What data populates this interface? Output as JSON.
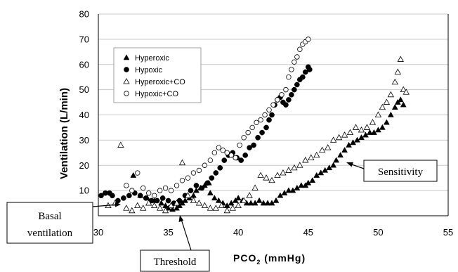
{
  "chart_data": {
    "type": "scatter",
    "title": "",
    "xlabel": "PCO",
    "xlabel_sub": "2",
    "xlabel_unit": " (mmHg)",
    "ylabel": "Ventilation (L/min)",
    "xlim": [
      30,
      55
    ],
    "ylim": [
      0,
      80
    ],
    "xticks": [
      "30",
      "35",
      "40",
      "45",
      "50",
      "55"
    ],
    "yticks": [
      "0",
      "10",
      "20",
      "30",
      "40",
      "50",
      "60",
      "70",
      "80"
    ],
    "grid": "horizontal",
    "legend_position": "upper-left",
    "series": [
      {
        "name": "Hyperoxic",
        "marker": "filled-triangle",
        "points": [
          [
            32.5,
            16
          ],
          [
            33,
            8
          ],
          [
            33.5,
            7
          ],
          [
            34,
            6
          ],
          [
            34.5,
            5
          ],
          [
            34.8,
            4
          ],
          [
            35,
            3
          ],
          [
            35.3,
            2.5
          ],
          [
            35.6,
            3
          ],
          [
            35.8,
            4
          ],
          [
            36,
            5
          ],
          [
            36.2,
            6
          ],
          [
            36.5,
            7
          ],
          [
            36.8,
            8
          ],
          [
            37,
            10
          ],
          [
            37.3,
            11
          ],
          [
            37.6,
            12
          ],
          [
            37.9,
            13
          ],
          [
            38,
            9
          ],
          [
            38.3,
            7
          ],
          [
            38.6,
            6
          ],
          [
            38.9,
            5
          ],
          [
            39.2,
            4
          ],
          [
            39.5,
            5
          ],
          [
            39.8,
            6
          ],
          [
            40,
            7
          ],
          [
            40.3,
            6
          ],
          [
            40.6,
            5
          ],
          [
            40.9,
            5
          ],
          [
            41.2,
            5
          ],
          [
            41.5,
            6
          ],
          [
            41.8,
            5
          ],
          [
            42.1,
            5
          ],
          [
            42.4,
            5
          ],
          [
            42.7,
            6
          ],
          [
            43,
            8
          ],
          [
            43.3,
            9
          ],
          [
            43.6,
            10
          ],
          [
            43.9,
            10
          ],
          [
            44.2,
            11
          ],
          [
            44.5,
            12
          ],
          [
            44.8,
            12
          ],
          [
            45,
            13
          ],
          [
            45.3,
            14
          ],
          [
            45.6,
            16
          ],
          [
            45.9,
            17
          ],
          [
            46.2,
            18
          ],
          [
            46.5,
            19
          ],
          [
            46.8,
            20
          ],
          [
            47,
            22
          ],
          [
            47.3,
            24
          ],
          [
            47.6,
            26
          ],
          [
            47.9,
            28
          ],
          [
            48.2,
            29
          ],
          [
            48.5,
            30
          ],
          [
            48.8,
            31
          ],
          [
            49.1,
            32
          ],
          [
            49.4,
            33
          ],
          [
            49.7,
            33
          ],
          [
            50,
            34
          ],
          [
            50.3,
            35
          ],
          [
            50.6,
            37
          ],
          [
            50.9,
            40
          ],
          [
            51.2,
            43
          ],
          [
            51.4,
            45
          ],
          [
            51.6,
            46
          ],
          [
            51.8,
            44
          ]
        ]
      },
      {
        "name": "Hypoxic",
        "marker": "filled-circle",
        "points": [
          [
            30.2,
            8
          ],
          [
            30.5,
            9
          ],
          [
            30.8,
            9
          ],
          [
            31,
            8
          ],
          [
            31.4,
            6
          ],
          [
            31.8,
            7
          ],
          [
            32.2,
            8
          ],
          [
            32.6,
            9
          ],
          [
            33,
            8
          ],
          [
            33.4,
            7
          ],
          [
            33.8,
            6
          ],
          [
            34.2,
            6
          ],
          [
            34.6,
            7
          ],
          [
            35,
            6
          ],
          [
            35.4,
            5
          ],
          [
            35.8,
            6
          ],
          [
            36.2,
            8
          ],
          [
            36.6,
            10
          ],
          [
            37,
            12
          ],
          [
            37.4,
            11
          ],
          [
            37.8,
            13
          ],
          [
            38.1,
            15
          ],
          [
            38.4,
            17
          ],
          [
            38.7,
            19
          ],
          [
            39,
            22
          ],
          [
            39.3,
            24
          ],
          [
            39.6,
            25
          ],
          [
            39.9,
            23
          ],
          [
            40.2,
            22
          ],
          [
            40.5,
            24
          ],
          [
            40.8,
            27
          ],
          [
            41.1,
            28
          ],
          [
            41.4,
            31
          ],
          [
            41.7,
            33
          ],
          [
            42,
            35
          ],
          [
            42.2,
            38
          ],
          [
            42.4,
            40
          ],
          [
            42.6,
            44
          ],
          [
            42.8,
            46
          ],
          [
            43,
            47
          ],
          [
            43.2,
            45
          ],
          [
            43.4,
            44
          ],
          [
            43.6,
            46
          ],
          [
            43.8,
            48
          ],
          [
            44,
            50
          ],
          [
            44.2,
            52
          ],
          [
            44.4,
            54
          ],
          [
            44.6,
            55
          ],
          [
            44.8,
            57
          ],
          [
            45,
            59
          ],
          [
            45.1,
            58
          ]
        ]
      },
      {
        "name": "Hyperoxic+CO",
        "marker": "open-triangle",
        "points": [
          [
            30.7,
            4
          ],
          [
            31.2,
            5
          ],
          [
            31.6,
            28
          ],
          [
            32,
            3
          ],
          [
            32.4,
            2
          ],
          [
            32.8,
            4
          ],
          [
            33.2,
            3
          ],
          [
            33.6,
            5
          ],
          [
            34,
            4
          ],
          [
            34.4,
            3
          ],
          [
            34.8,
            2
          ],
          [
            35.2,
            4
          ],
          [
            35.6,
            5
          ],
          [
            36,
            21
          ],
          [
            36.4,
            8
          ],
          [
            36.8,
            6
          ],
          [
            37.2,
            5
          ],
          [
            37.6,
            4
          ],
          [
            38,
            3
          ],
          [
            38.4,
            3
          ],
          [
            38.8,
            4
          ],
          [
            39.2,
            2
          ],
          [
            39.6,
            3
          ],
          [
            40,
            4
          ],
          [
            40.4,
            6
          ],
          [
            40.8,
            8
          ],
          [
            41.2,
            11
          ],
          [
            41.6,
            16
          ],
          [
            42,
            15
          ],
          [
            42.4,
            14
          ],
          [
            42.8,
            16
          ],
          [
            43.2,
            17
          ],
          [
            43.6,
            18
          ],
          [
            44,
            19
          ],
          [
            44.4,
            20
          ],
          [
            44.8,
            22
          ],
          [
            45.2,
            23
          ],
          [
            45.6,
            24
          ],
          [
            46,
            26
          ],
          [
            46.4,
            27
          ],
          [
            46.8,
            30
          ],
          [
            47.2,
            31
          ],
          [
            47.6,
            32
          ],
          [
            48,
            33
          ],
          [
            48.4,
            35
          ],
          [
            48.8,
            34
          ],
          [
            49.2,
            35
          ],
          [
            49.6,
            37
          ],
          [
            50,
            40
          ],
          [
            50.3,
            43
          ],
          [
            50.6,
            45
          ],
          [
            50.9,
            48
          ],
          [
            51.2,
            53
          ],
          [
            51.4,
            57
          ],
          [
            51.6,
            62
          ],
          [
            51.8,
            50
          ],
          [
            52,
            49
          ]
        ]
      },
      {
        "name": "Hypoxic+CO",
        "marker": "open-circle",
        "points": [
          [
            32,
            12
          ],
          [
            32.4,
            10
          ],
          [
            32.8,
            17
          ],
          [
            33.2,
            11
          ],
          [
            33.6,
            9
          ],
          [
            34,
            8
          ],
          [
            34.4,
            10
          ],
          [
            34.8,
            11
          ],
          [
            35.2,
            10
          ],
          [
            35.6,
            12
          ],
          [
            36,
            14
          ],
          [
            36.4,
            15
          ],
          [
            36.8,
            17
          ],
          [
            37.2,
            18
          ],
          [
            37.6,
            20
          ],
          [
            38,
            22
          ],
          [
            38.3,
            25
          ],
          [
            38.6,
            27
          ],
          [
            38.9,
            26
          ],
          [
            39.2,
            25
          ],
          [
            39.5,
            24
          ],
          [
            39.8,
            23
          ],
          [
            40.1,
            28
          ],
          [
            40.4,
            31
          ],
          [
            40.7,
            33
          ],
          [
            41,
            35
          ],
          [
            41.3,
            37
          ],
          [
            41.6,
            38
          ],
          [
            41.9,
            40
          ],
          [
            42.2,
            42
          ],
          [
            42.5,
            44
          ],
          [
            42.8,
            46
          ],
          [
            43.1,
            48
          ],
          [
            43.4,
            50
          ],
          [
            43.6,
            55
          ],
          [
            43.8,
            58
          ],
          [
            44,
            61
          ],
          [
            44.2,
            63
          ],
          [
            44.4,
            66
          ],
          [
            44.6,
            68
          ],
          [
            44.8,
            69
          ],
          [
            45,
            70
          ]
        ]
      }
    ],
    "annotations": {
      "basal": [
        "Basal",
        "ventilation"
      ],
      "threshold": "Threshold",
      "sensitivity": "Sensitivity"
    }
  }
}
